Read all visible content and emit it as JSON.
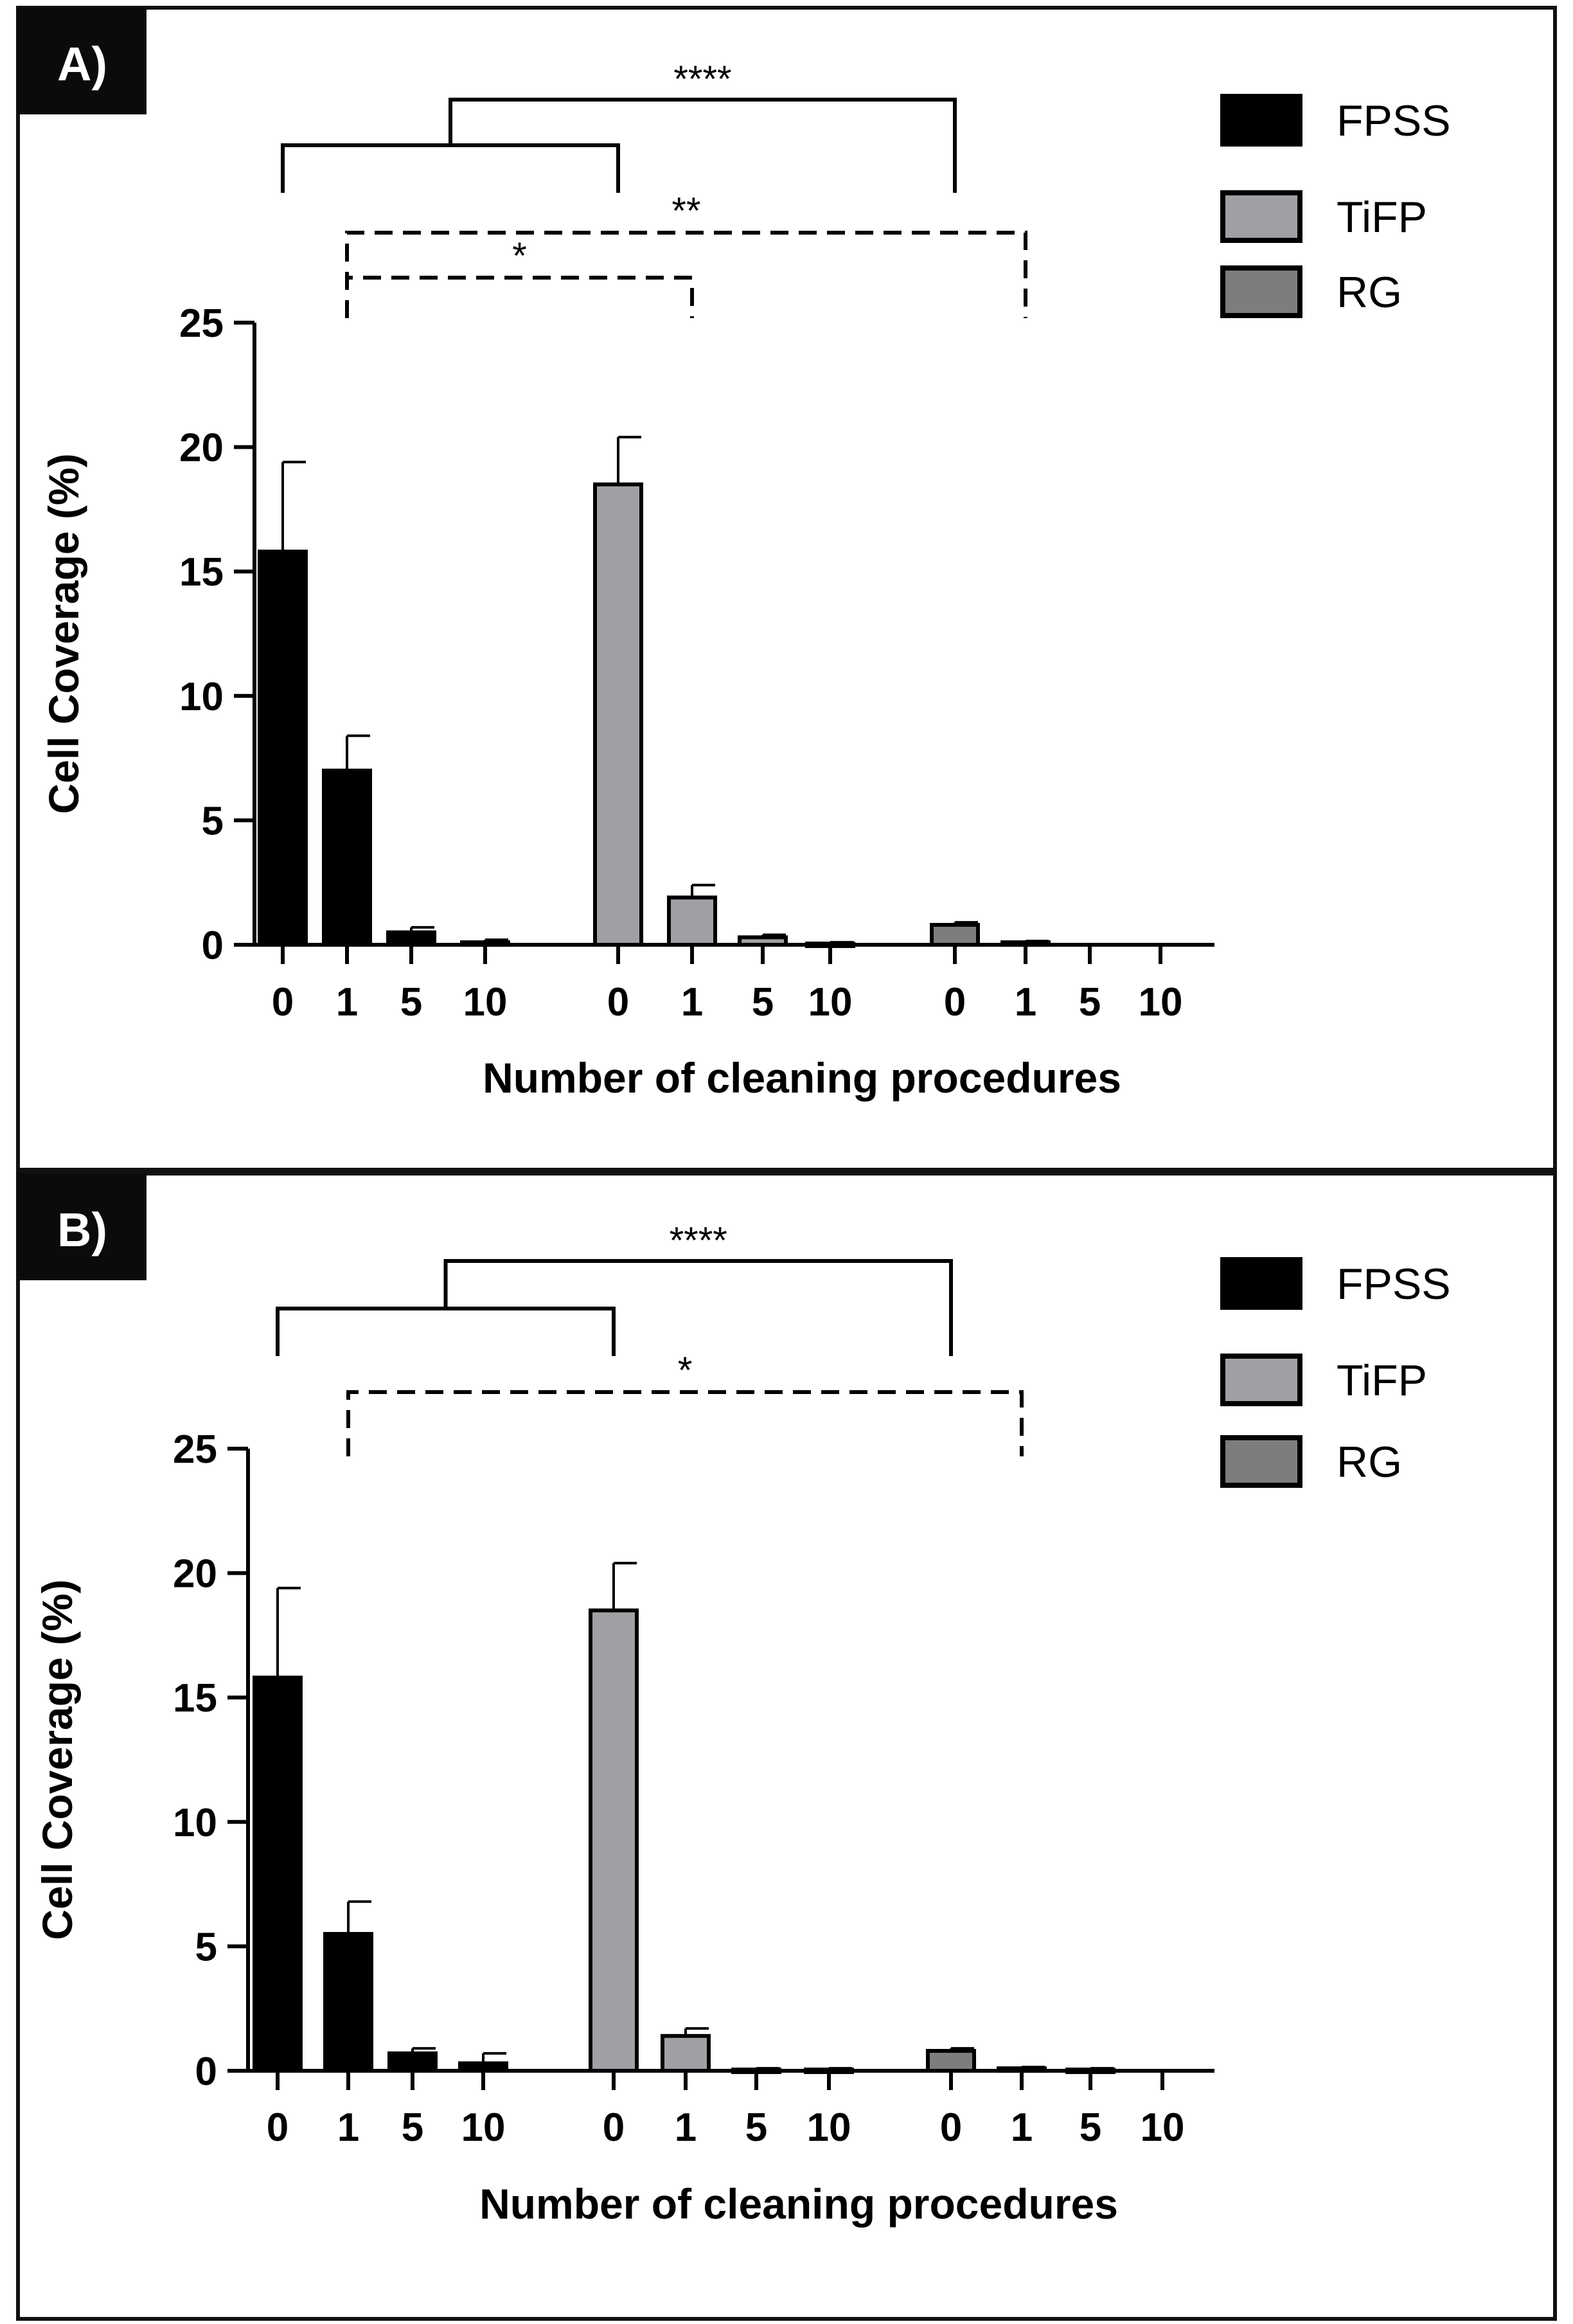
{
  "colors": {
    "FPSS": "#000000",
    "TiFP": "#a0a0a4",
    "RG": "#7d7d7d",
    "error_bar": "#000000"
  },
  "chart_data": [
    {
      "type": "bar",
      "panel_label": "A)",
      "groups": [
        "FPSS",
        "TiFP",
        "RG"
      ],
      "categories": [
        "0",
        "1",
        "5",
        "10"
      ],
      "series": [
        {
          "name": "FPSS",
          "values": [
            15.8,
            7.0,
            0.5,
            0.1
          ],
          "errors": [
            3.6,
            1.4,
            0.2,
            0.1
          ]
        },
        {
          "name": "TiFP",
          "values": [
            18.5,
            1.9,
            0.3,
            0.05
          ],
          "errors": [
            1.9,
            0.5,
            0.1,
            0.05
          ]
        },
        {
          "name": "RG",
          "values": [
            0.8,
            0.1,
            0.0,
            0.0
          ],
          "errors": [
            0.1,
            0.05,
            0.0,
            0.0
          ]
        }
      ],
      "xlabel": "Number of cleaning procedures",
      "ylabel": "Cell Coverage (%)",
      "ylim": [
        0,
        25
      ],
      "yticks": [
        "0",
        "5",
        "10",
        "15",
        "20",
        "25"
      ],
      "grid": false,
      "legend": "top-right",
      "annotations": [
        {
          "label": "****",
          "style": "solid",
          "type": "nested",
          "from": [
            [
              "FPSS",
              "0"
            ],
            [
              "TiFP",
              "0"
            ]
          ],
          "to": [
            "RG",
            "0"
          ]
        },
        {
          "label": "**",
          "style": "dashed",
          "type": "single",
          "from": [
            "FPSS",
            "1"
          ],
          "to": [
            "RG",
            "1"
          ]
        },
        {
          "label": "*",
          "style": "dashed",
          "type": "single",
          "from": [
            "FPSS",
            "1"
          ],
          "to": [
            "TiFP",
            "1"
          ]
        }
      ]
    },
    {
      "type": "bar",
      "panel_label": "B)",
      "groups": [
        "FPSS",
        "TiFP",
        "RG"
      ],
      "categories": [
        "0",
        "1",
        "5",
        "10"
      ],
      "series": [
        {
          "name": "FPSS",
          "values": [
            15.8,
            5.5,
            0.7,
            0.3
          ],
          "errors": [
            3.6,
            1.3,
            0.2,
            0.4
          ]
        },
        {
          "name": "TiFP",
          "values": [
            18.5,
            1.4,
            0.05,
            0.05
          ],
          "errors": [
            1.9,
            0.3,
            0.05,
            0.05
          ]
        },
        {
          "name": "RG",
          "values": [
            0.8,
            0.1,
            0.05,
            0.0
          ],
          "errors": [
            0.1,
            0.05,
            0.05,
            0.0
          ]
        }
      ],
      "xlabel": "Number of cleaning procedures",
      "ylabel": "Cell Coverage (%)",
      "ylim": [
        0,
        25
      ],
      "yticks": [
        "0",
        "5",
        "10",
        "15",
        "20",
        "25"
      ],
      "grid": false,
      "legend": "top-right",
      "annotations": [
        {
          "label": "****",
          "style": "solid",
          "type": "nested",
          "from": [
            [
              "FPSS",
              "0"
            ],
            [
              "TiFP",
              "0"
            ]
          ],
          "to": [
            "RG",
            "0"
          ]
        },
        {
          "label": "*",
          "style": "dashed",
          "type": "single",
          "from": [
            "FPSS",
            "1"
          ],
          "to": [
            "RG",
            "1"
          ]
        }
      ]
    }
  ]
}
